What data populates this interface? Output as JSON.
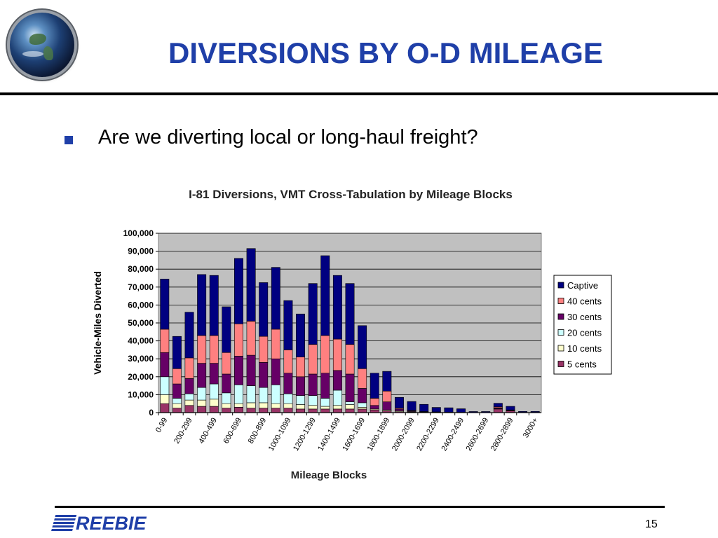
{
  "slide": {
    "title": "DIVERSIONS BY O-D MILEAGE",
    "bullet": "Are we diverting local or long-haul freight?",
    "logo_text": "REEBIE",
    "page_number": "15",
    "colors": {
      "title": "#1f3fa8",
      "bullet": "#1f3fa8"
    }
  },
  "chart_data": {
    "type": "bar",
    "stacked": true,
    "title": "I-81 Diversions, VMT Cross-Tabulation by Mileage Blocks",
    "xlabel": "Mileage Blocks",
    "ylabel": "Vehicle-Miles Diverted",
    "ylim": [
      0,
      100000
    ],
    "yticks": [
      0,
      10000,
      20000,
      30000,
      40000,
      50000,
      60000,
      70000,
      80000,
      90000,
      100000
    ],
    "ytick_labels": [
      "0",
      "10,000",
      "20,000",
      "30,000",
      "40,000",
      "50,000",
      "60,000",
      "70,000",
      "80,000",
      "90,000",
      "100,000"
    ],
    "categories": [
      "0-99",
      "100-199",
      "200-299",
      "300-399",
      "400-499",
      "500-599",
      "600-699",
      "700-799",
      "800-899",
      "900-999",
      "1000-1099",
      "1100-1199",
      "1200-1299",
      "1300-1399",
      "1400-1499",
      "1500-1599",
      "1600-1699",
      "1700-1799",
      "1800-1899",
      "1900-1999",
      "2000-2099",
      "2100-2199",
      "2200-2299",
      "2300-2399",
      "2400-2499",
      "2500-2599",
      "2600-2699",
      "2700-2799",
      "2800-2899",
      "2900-2999",
      "3000+"
    ],
    "tick_labels": [
      "0-99",
      "",
      "200-299",
      "",
      "400-499",
      "",
      "600-699",
      "",
      "800-899",
      "",
      "1000-1099",
      "",
      "1200-1299",
      "",
      "1400-1499",
      "",
      "1600-1699",
      "",
      "1800-1899",
      "",
      "2000-2099",
      "",
      "2200-2299",
      "",
      "2400-2499",
      "",
      "2600-2699",
      "",
      "2800-2899",
      "",
      "3000+"
    ],
    "grid": true,
    "legend_position": "right",
    "background": "#c0c0c0",
    "series": [
      {
        "name": "5 cents",
        "color": "#993366",
        "values": [
          5000,
          2500,
          4000,
          3500,
          3500,
          2500,
          3000,
          2500,
          2500,
          2500,
          2500,
          2000,
          2000,
          2000,
          2000,
          2000,
          2000,
          1500,
          1000,
          500,
          300,
          200,
          100,
          100,
          100,
          50,
          50,
          2000,
          1000,
          100,
          100
        ]
      },
      {
        "name": "10 cents",
        "color": "#ffffcc",
        "values": [
          5000,
          2500,
          3000,
          3500,
          4000,
          2500,
          2000,
          3000,
          3000,
          2500,
          2500,
          2500,
          2000,
          1500,
          2000,
          2500,
          1000,
          500,
          500,
          500,
          300,
          200,
          100,
          100,
          50,
          50,
          50,
          200,
          200,
          50,
          50
        ]
      },
      {
        "name": "20 cents",
        "color": "#ccffff",
        "values": [
          10000,
          3000,
          3500,
          7000,
          8500,
          6000,
          10500,
          9500,
          8500,
          10500,
          5500,
          5000,
          5500,
          4500,
          8500,
          1500,
          2500,
          0,
          0,
          0,
          0,
          0,
          0,
          0,
          0,
          0,
          0,
          0,
          0,
          0,
          0
        ]
      },
      {
        "name": "30 cents",
        "color": "#660066",
        "values": [
          13500,
          8000,
          8500,
          13500,
          11500,
          10500,
          16000,
          17000,
          14000,
          14500,
          11500,
          10500,
          12000,
          14000,
          11000,
          15500,
          8000,
          2000,
          4500,
          1000,
          300,
          100,
          100,
          0,
          0,
          0,
          0,
          500,
          200,
          0,
          0
        ]
      },
      {
        "name": "40 cents",
        "color": "#ff8080",
        "values": [
          13000,
          8500,
          11500,
          15500,
          15500,
          12000,
          18000,
          19000,
          14500,
          16500,
          13000,
          11000,
          16500,
          21000,
          17500,
          16500,
          11000,
          4000,
          6000,
          500,
          300,
          100,
          100,
          0,
          0,
          0,
          0,
          500,
          100,
          0,
          0
        ]
      },
      {
        "name": "Captive",
        "color": "#000080",
        "values": [
          28000,
          18000,
          25500,
          34000,
          33500,
          25500,
          36500,
          40500,
          30000,
          34500,
          27500,
          24000,
          34000,
          44500,
          35500,
          34000,
          24000,
          14000,
          11000,
          6000,
          5000,
          4000,
          2500,
          2500,
          2000,
          500,
          500,
          2000,
          2000,
          500,
          500
        ]
      }
    ]
  }
}
